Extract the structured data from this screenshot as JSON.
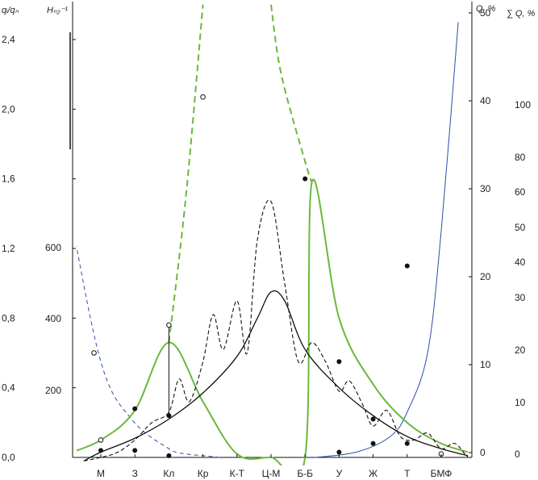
{
  "chart_data": {
    "type": "line",
    "axes": {
      "left_primary": {
        "label": "qᵢ/qₙ",
        "ticks": [
          "0,0",
          "0,4",
          "0,8",
          "1,2",
          "1,6",
          "2,0",
          "2,4"
        ],
        "range": [
          0,
          2.5
        ]
      },
      "left_secondary": {
        "label": "Hₙ₂⁻¹",
        "ticks": [
          "200",
          "400",
          "600"
        ],
        "range": [
          0,
          850
        ]
      },
      "right_primary": {
        "label": "Q, %",
        "ticks": [
          "0",
          "10",
          "20",
          "30",
          "40",
          "50"
        ],
        "range": [
          0,
          50
        ]
      },
      "right_secondary": {
        "label": "∑ Q, %",
        "ticks": [
          "0",
          "10",
          "20",
          "30",
          "40",
          "50",
          "60",
          "80",
          "100"
        ]
      }
    },
    "categories": [
      "М",
      "З",
      "Кл",
      "Кр",
      "К-Т",
      "Ц-М",
      "Б-Б",
      "У",
      "Ж",
      "Т",
      "БМФ"
    ],
    "series": [
      {
        "style": "blue-dashed",
        "x": [
          -2.0,
          -1.0,
          0.0,
          0.9,
          2.0,
          2.5,
          3.0,
          3.5
        ],
        "y": [
          2.5,
          1.5,
          0.55,
          0.22,
          0.05,
          0.02,
          0.01,
          0.0
        ]
      },
      {
        "style": "blue-solid",
        "x": [
          6.3,
          7.5,
          8.5,
          9.0,
          9.6,
          10.0,
          10.5
        ],
        "y": [
          0.0,
          0.03,
          0.12,
          0.26,
          0.6,
          1.3,
          2.5
        ]
      },
      {
        "style": "green-solid",
        "x": [
          -1.0,
          0.0,
          1.0,
          2.0,
          3.0,
          4.0,
          5.0,
          6.0,
          6.2,
          7.0,
          8.0,
          9.0,
          10.0,
          11.0,
          11.5
        ],
        "y": [
          0.02,
          0.1,
          0.27,
          0.66,
          0.32,
          0.02,
          0.0,
          0.0,
          1.58,
          0.8,
          0.42,
          0.2,
          0.08,
          0.02,
          0.0
        ],
        "dashed_continuations": [
          {
            "x": [
              2.0,
              2.5,
              3.0
            ],
            "y": [
              0.66,
              1.5,
              2.6
            ]
          },
          {
            "x": [
              5.0,
              5.3,
              6.0,
              6.2
            ],
            "y": [
              2.6,
              2.2,
              1.7,
              1.58
            ]
          }
        ]
      },
      {
        "style": "black-solid",
        "x": [
          -0.5,
          0.0,
          1.0,
          2.0,
          3.0,
          4.0,
          4.6,
          5.0,
          5.4,
          6.0,
          7.0,
          8.0,
          9.0,
          10.0,
          11.0
        ],
        "y": [
          -0.02,
          0.03,
          0.11,
          0.22,
          0.37,
          0.58,
          0.8,
          0.95,
          0.9,
          0.62,
          0.4,
          0.24,
          0.12,
          0.05,
          0.0
        ]
      },
      {
        "style": "black-dashed",
        "x": [
          -0.5,
          0.0,
          0.5,
          1.0,
          1.5,
          2.0,
          2.3,
          2.6,
          3.0,
          3.3,
          3.6,
          4.0,
          4.3,
          4.6,
          5.0,
          5.4,
          5.8,
          6.2,
          6.6,
          7.0,
          7.3,
          7.7,
          8.0,
          8.4,
          8.8,
          9.2,
          9.6,
          10.0,
          10.4,
          10.8,
          11.2
        ],
        "y": [
          -0.02,
          0.0,
          0.03,
          0.1,
          0.2,
          0.26,
          0.45,
          0.32,
          0.55,
          0.82,
          0.62,
          0.9,
          0.6,
          1.25,
          1.47,
          1.0,
          0.55,
          0.66,
          0.55,
          0.38,
          0.44,
          0.3,
          0.18,
          0.27,
          0.12,
          0.1,
          0.14,
          0.05,
          0.08,
          0.0,
          -0.02
        ]
      }
    ],
    "points_filled": [
      {
        "x": 0.0,
        "y": 0.04
      },
      {
        "x": 1.0,
        "y": 0.28
      },
      {
        "x": 1.0,
        "y": 0.04
      },
      {
        "x": 2.0,
        "y": 0.24
      },
      {
        "x": 2.0,
        "y": 0.01
      },
      {
        "x": 6.0,
        "y": 1.6
      },
      {
        "x": 7.0,
        "y": 0.55
      },
      {
        "x": 7.0,
        "y": 0.03
      },
      {
        "x": 8.0,
        "y": 0.22
      },
      {
        "x": 8.0,
        "y": 0.08
      },
      {
        "x": 9.0,
        "y": 1.1
      },
      {
        "x": 9.0,
        "y": 0.08
      },
      {
        "x": 10.0,
        "y": 0.02
      }
    ],
    "points_open": [
      {
        "x": -0.2,
        "y": 0.6
      },
      {
        "x": 0.0,
        "y": 0.1
      },
      {
        "x": 2.0,
        "y": 0.76
      },
      {
        "x": 3.0,
        "y": 2.07
      },
      {
        "x": 10.0,
        "y": 0.02
      }
    ],
    "vertical_marks": [
      {
        "x": 2.0,
        "y1": 0.24,
        "y2": 0.76
      }
    ],
    "colors": {
      "green": "#6bb83a",
      "blue": "#2b4fa8",
      "black": "#111111"
    }
  }
}
